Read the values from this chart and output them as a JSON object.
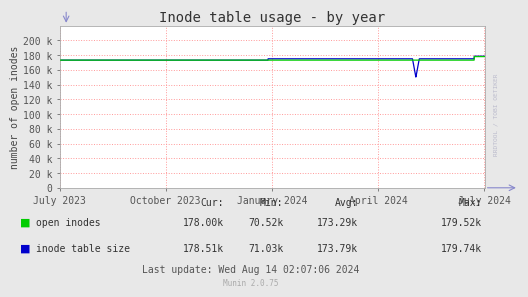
{
  "title": "Inode table usage - by year",
  "ylabel": "number of open inodes",
  "bg_color": "#e8e8e8",
  "plot_bg_color": "#ffffff",
  "grid_color": "#ff9999",
  "ylim": [
    0,
    220000
  ],
  "yticks": [
    0,
    20000,
    40000,
    60000,
    80000,
    100000,
    120000,
    140000,
    160000,
    180000,
    200000
  ],
  "ytick_labels": [
    "0",
    "20 k",
    "40 k",
    "60 k",
    "80 k",
    "100 k",
    "120 k",
    "140 k",
    "160 k",
    "180 k",
    "200 k"
  ],
  "xtick_labels": [
    "July 2023",
    "October 2023",
    "January 2024",
    "April 2024",
    "July 2024"
  ],
  "xtick_positions": [
    0.0,
    0.249,
    0.499,
    0.749,
    0.999
  ],
  "open_inodes_color": "#00cc00",
  "inode_table_color": "#0000cc",
  "legend_labels": [
    "open inodes",
    "inode table size"
  ],
  "stats_header": [
    "Cur:",
    "Min:",
    "Avg:",
    "Max:"
  ],
  "stats_open": [
    "178.00k",
    "70.52k",
    "173.29k",
    "179.52k"
  ],
  "stats_table": [
    "178.51k",
    "71.03k",
    "173.79k",
    "179.74k"
  ],
  "last_update": "Last update: Wed Aug 14 02:07:06 2024",
  "munin_version": "Munin 2.0.75",
  "watermark": "RRDTOOL / TOBI OETIKER",
  "title_fontsize": 10,
  "axis_fontsize": 7,
  "legend_fontsize": 7,
  "stats_fontsize": 7
}
